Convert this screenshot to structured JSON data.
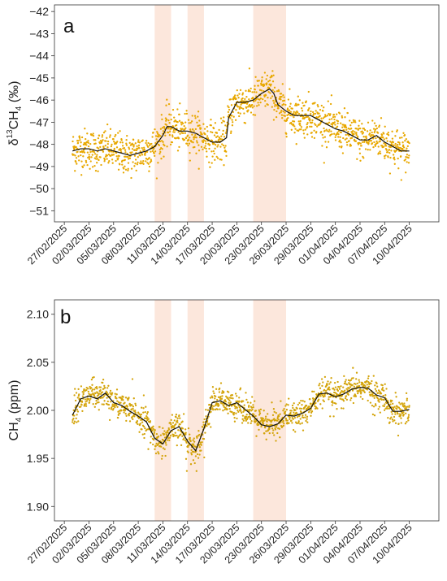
{
  "chart_data": [
    {
      "type": "scatter",
      "panel_label": "a",
      "ylabel": {
        "base": "δ",
        "sup1": "13",
        "mid": "CH",
        "sub": "4",
        "tail": " (‰)"
      },
      "ylim": [
        -51.5,
        -41.7
      ],
      "yticks": [
        -42,
        -43,
        -44,
        -45,
        -46,
        -47,
        -48,
        -49,
        -50,
        -51
      ],
      "ytick_labels": [
        "−42",
        "−43",
        "−44",
        "−45",
        "−46",
        "−47",
        "−48",
        "−49",
        "−50",
        "−51"
      ],
      "grid": false,
      "point_color": "#E8A800",
      "line_color": "#111111",
      "highlight_color": "#FBE3D6",
      "highlight_periods": [
        [
          "2025-03-10",
          "2025-03-12"
        ],
        [
          "2025-03-14",
          "2025-03-16"
        ],
        [
          "2025-03-22",
          "2025-03-26"
        ]
      ],
      "series": [
        {
          "kind": "smoothed",
          "x": [
            "2025-02-28",
            "2025-03-01",
            "2025-03-02",
            "2025-03-03",
            "2025-03-04",
            "2025-03-05",
            "2025-03-06",
            "2025-03-07",
            "2025-03-08",
            "2025-03-09",
            "2025-03-10",
            "2025-03-11",
            "2025-03-11T12:00",
            "2025-03-12",
            "2025-03-13",
            "2025-03-14",
            "2025-03-15",
            "2025-03-16",
            "2025-03-17",
            "2025-03-18",
            "2025-03-18T18:00",
            "2025-03-19",
            "2025-03-20",
            "2025-03-21",
            "2025-03-22",
            "2025-03-23",
            "2025-03-24",
            "2025-03-24T12:00",
            "2025-03-25",
            "2025-03-26",
            "2025-03-27",
            "2025-03-28",
            "2025-03-29",
            "2025-03-30",
            "2025-03-31",
            "2025-04-01",
            "2025-04-02",
            "2025-04-03",
            "2025-04-04",
            "2025-04-05",
            "2025-04-06",
            "2025-04-07",
            "2025-04-08",
            "2025-04-09",
            "2025-04-10"
          ],
          "y": [
            -48.3,
            -48.2,
            -48.2,
            -48.3,
            -48.2,
            -48.3,
            -48.4,
            -48.5,
            -48.4,
            -48.3,
            -48.1,
            -47.6,
            -47.2,
            -47.2,
            -47.4,
            -47.4,
            -47.5,
            -47.7,
            -47.9,
            -47.9,
            -47.7,
            -46.8,
            -46.1,
            -46.1,
            -46.0,
            -45.7,
            -45.5,
            -45.7,
            -46.2,
            -46.5,
            -46.7,
            -46.7,
            -46.7,
            -46.9,
            -47.1,
            -47.3,
            -47.4,
            -47.6,
            -47.8,
            -47.8,
            -47.6,
            -47.9,
            -48.1,
            -48.3,
            -48.3
          ]
        }
      ],
      "scatter_noise": 0.45
    },
    {
      "type": "scatter",
      "panel_label": "b",
      "ylabel": {
        "base": "",
        "sup1": "",
        "mid": "CH",
        "sub": "4",
        "tail": " (ppm)"
      },
      "ylim": [
        1.885,
        2.115
      ],
      "yticks": [
        2.1,
        2.05,
        2.0,
        1.95,
        1.9
      ],
      "ytick_labels": [
        "2.10",
        "2.05",
        "2.00",
        "1.95",
        "1.90"
      ],
      "grid": false,
      "point_color": "#D4A40A",
      "line_color": "#111111",
      "highlight_color": "#FBE3D6",
      "highlight_periods": [
        [
          "2025-03-10",
          "2025-03-12"
        ],
        [
          "2025-03-14",
          "2025-03-16"
        ],
        [
          "2025-03-22",
          "2025-03-26"
        ]
      ],
      "series": [
        {
          "kind": "smoothed",
          "x": [
            "2025-02-28",
            "2025-03-01",
            "2025-03-02",
            "2025-03-03",
            "2025-03-04",
            "2025-03-05",
            "2025-03-06",
            "2025-03-07",
            "2025-03-08",
            "2025-03-09",
            "2025-03-10",
            "2025-03-11",
            "2025-03-12",
            "2025-03-13",
            "2025-03-14",
            "2025-03-15",
            "2025-03-16",
            "2025-03-17",
            "2025-03-18",
            "2025-03-19",
            "2025-03-20",
            "2025-03-21",
            "2025-03-22",
            "2025-03-23",
            "2025-03-24",
            "2025-03-25",
            "2025-03-26",
            "2025-03-27",
            "2025-03-28",
            "2025-03-29",
            "2025-03-30",
            "2025-03-31",
            "2025-04-01",
            "2025-04-02",
            "2025-04-03",
            "2025-04-04",
            "2025-04-05",
            "2025-04-06",
            "2025-04-07",
            "2025-04-08",
            "2025-04-09",
            "2025-04-10"
          ],
          "y": [
            1.995,
            2.012,
            2.015,
            2.012,
            2.018,
            2.008,
            2.005,
            1.999,
            1.994,
            1.988,
            1.971,
            1.965,
            1.979,
            1.983,
            1.968,
            1.958,
            1.981,
            2.008,
            2.01,
            2.005,
            2.008,
            2.001,
            1.994,
            1.985,
            1.983,
            1.986,
            1.995,
            1.994,
            1.997,
            2.002,
            2.017,
            2.018,
            2.014,
            2.017,
            2.022,
            2.024,
            2.023,
            2.016,
            2.013,
            1.999,
            1.999,
            2.001
          ]
        }
      ],
      "scatter_noise": 0.007
    }
  ],
  "x_axis": {
    "start": "2025-02-27",
    "tick_dates": [
      "2025-02-27",
      "2025-03-02",
      "2025-03-05",
      "2025-03-08",
      "2025-03-11",
      "2025-03-14",
      "2025-03-17",
      "2025-03-20",
      "2025-03-23",
      "2025-03-26",
      "2025-03-29",
      "2025-04-01",
      "2025-04-04",
      "2025-04-07",
      "2025-04-10"
    ],
    "tick_labels": [
      "27/02/2025",
      "02/03/2025",
      "05/03/2025",
      "08/03/2025",
      "11/03/2025",
      "14/03/2025",
      "17/03/2025",
      "20/03/2025",
      "23/03/2025",
      "26/03/2025",
      "29/03/2025",
      "01/04/2025",
      "04/04/2025",
      "07/04/2025",
      "10/04/2025"
    ],
    "data_start": "2025-02-28",
    "data_end": "2025-04-10"
  }
}
